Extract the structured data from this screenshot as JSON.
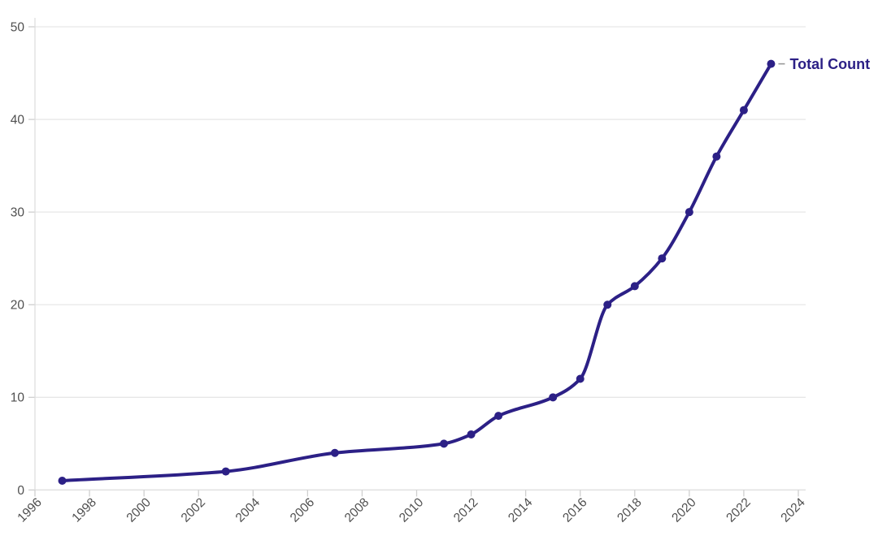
{
  "chart_data": {
    "type": "line",
    "title": "",
    "xlabel": "",
    "ylabel": "",
    "x": [
      1997,
      2003,
      2007,
      2011,
      2012,
      2013,
      2015,
      2016,
      2017,
      2018,
      2019,
      2020,
      2021,
      2022,
      2023
    ],
    "series": [
      {
        "name": "Total Count",
        "values": [
          1,
          2,
          4,
          5,
          6,
          8,
          10,
          12,
          20,
          22,
          25,
          30,
          36,
          41,
          46
        ]
      }
    ],
    "xlim": [
      1996,
      2024
    ],
    "ylim": [
      0,
      50
    ],
    "x_tick_labels": [
      "1996",
      "1998",
      "2000",
      "2002",
      "2004",
      "2006",
      "2008",
      "2010",
      "2012",
      "2014",
      "2016",
      "2018",
      "2020",
      "2022",
      "2024"
    ],
    "y_tick_labels": [
      "0",
      "10",
      "20",
      "30",
      "40",
      "50"
    ],
    "x_tick_rotation_deg": -45,
    "grid": "horizontal-only",
    "legend_position": "right-of-last-point",
    "curve": "monotone",
    "colors": {
      "line": "#2c2086",
      "point": "#2c2086",
      "legend_text": "#2c2086",
      "legend_dash": "#999999",
      "tick_label": "#4f4f4f",
      "grid": "#e7e7e7",
      "axis": "#dedede",
      "tick": "#cfcfcf",
      "background": "#ffffff"
    }
  }
}
